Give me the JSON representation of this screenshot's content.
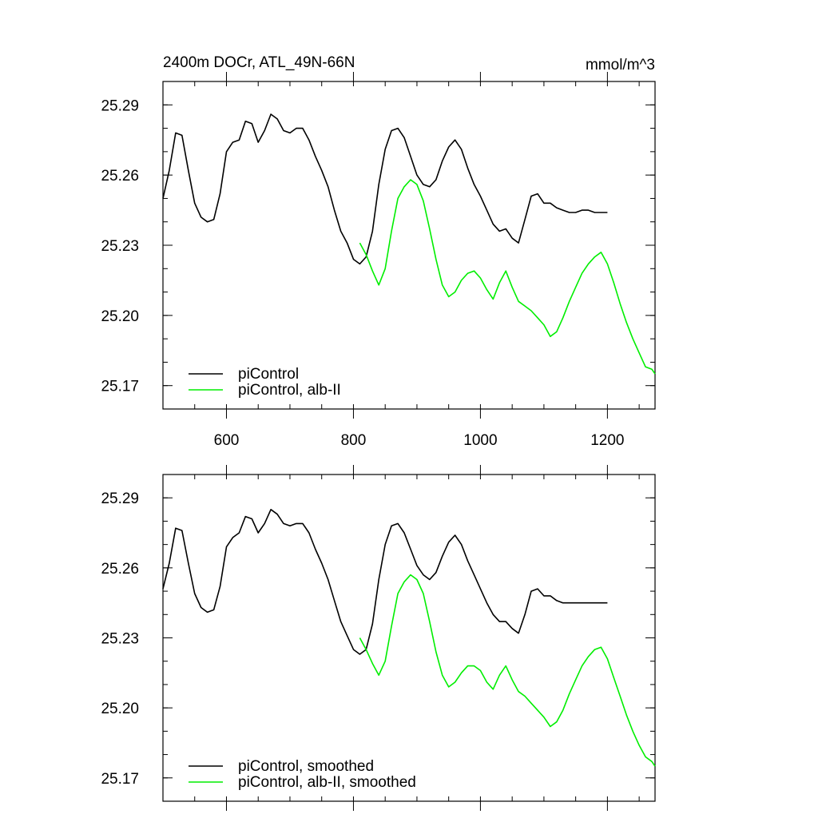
{
  "chart_data": [
    {
      "type": "line",
      "title": "2400m DOCr, ATL_49N-66N",
      "units": "mmol/m^3",
      "xlim": [
        500,
        1275
      ],
      "ylim": [
        25.16,
        25.3
      ],
      "xticks": [
        600,
        800,
        1000,
        1200
      ],
      "xtick_labels": [
        "600",
        "800",
        "1000",
        "1200"
      ],
      "yticks": [
        25.17,
        25.2,
        25.23,
        25.26,
        25.29
      ],
      "ytick_labels": [
        "25.17",
        "25.20",
        "25.23",
        "25.26",
        "25.29"
      ],
      "legend": "bottom-left",
      "grid": false,
      "series": [
        {
          "name": "piControl",
          "color": "#000000",
          "x": [
            500,
            510,
            520,
            530,
            540,
            550,
            560,
            570,
            580,
            590,
            600,
            610,
            620,
            630,
            640,
            650,
            660,
            670,
            680,
            690,
            700,
            710,
            720,
            730,
            740,
            750,
            760,
            770,
            780,
            790,
            800,
            810,
            820,
            830,
            840,
            850,
            860,
            870,
            880,
            890,
            900,
            910,
            920,
            930,
            940,
            950,
            960,
            970,
            980,
            990,
            1000,
            1010,
            1020,
            1030,
            1040,
            1050,
            1060,
            1070,
            1080,
            1090,
            1100,
            1110,
            1120,
            1130,
            1140,
            1150,
            1160,
            1170,
            1180,
            1190,
            1200
          ],
          "values": [
            25.25,
            25.262,
            25.278,
            25.277,
            25.262,
            25.248,
            25.242,
            25.24,
            25.241,
            25.252,
            25.27,
            25.274,
            25.275,
            25.283,
            25.282,
            25.274,
            25.279,
            25.286,
            25.284,
            25.279,
            25.278,
            25.28,
            25.28,
            25.275,
            25.268,
            25.262,
            25.255,
            25.245,
            25.236,
            25.231,
            25.224,
            25.222,
            25.225,
            25.236,
            25.256,
            25.271,
            25.279,
            25.28,
            25.276,
            25.268,
            25.26,
            25.256,
            25.255,
            25.258,
            25.266,
            25.272,
            25.275,
            25.271,
            25.263,
            25.256,
            25.251,
            25.245,
            25.239,
            25.236,
            25.237,
            25.233,
            25.231,
            25.241,
            25.251,
            25.252,
            25.248,
            25.248,
            25.246,
            25.245,
            25.244,
            25.244,
            25.245,
            25.245,
            25.244,
            25.244,
            25.244
          ]
        },
        {
          "name": "piControl, alb-II",
          "color": "#00ee00",
          "x": [
            810,
            820,
            830,
            840,
            850,
            860,
            870,
            880,
            890,
            900,
            910,
            920,
            930,
            940,
            950,
            960,
            970,
            980,
            990,
            1000,
            1010,
            1020,
            1030,
            1040,
            1050,
            1060,
            1070,
            1080,
            1090,
            1100,
            1110,
            1120,
            1130,
            1140,
            1150,
            1160,
            1170,
            1180,
            1190,
            1200,
            1210,
            1220,
            1230,
            1240,
            1250,
            1260,
            1270,
            1275
          ],
          "values": [
            25.231,
            25.226,
            25.219,
            25.213,
            25.22,
            25.236,
            25.25,
            25.255,
            25.258,
            25.256,
            25.249,
            25.237,
            25.224,
            25.213,
            25.208,
            25.21,
            25.215,
            25.218,
            25.219,
            25.216,
            25.211,
            25.207,
            25.214,
            25.219,
            25.212,
            25.206,
            25.204,
            25.202,
            25.199,
            25.196,
            25.191,
            25.193,
            25.199,
            25.206,
            25.212,
            25.218,
            25.222,
            25.225,
            25.227,
            25.222,
            25.214,
            25.205,
            25.197,
            25.19,
            25.184,
            25.178,
            25.177,
            25.175
          ]
        }
      ]
    },
    {
      "type": "line",
      "xlim": [
        500,
        1275
      ],
      "ylim": [
        25.16,
        25.3
      ],
      "xticks": [
        600,
        800,
        1000,
        1200
      ],
      "yticks": [
        25.17,
        25.2,
        25.23,
        25.26,
        25.29
      ],
      "ytick_labels": [
        "25.17",
        "25.20",
        "25.23",
        "25.26",
        "25.29"
      ],
      "legend": "bottom-left",
      "grid": false,
      "series": [
        {
          "name": "piControl, smoothed",
          "color": "#000000",
          "x": [
            500,
            510,
            520,
            530,
            540,
            550,
            560,
            570,
            580,
            590,
            600,
            610,
            620,
            630,
            640,
            650,
            660,
            670,
            680,
            690,
            700,
            710,
            720,
            730,
            740,
            750,
            760,
            770,
            780,
            790,
            800,
            810,
            820,
            830,
            840,
            850,
            860,
            870,
            880,
            890,
            900,
            910,
            920,
            930,
            940,
            950,
            960,
            970,
            980,
            990,
            1000,
            1010,
            1020,
            1030,
            1040,
            1050,
            1060,
            1070,
            1080,
            1090,
            1100,
            1110,
            1120,
            1130,
            1140,
            1150,
            1160,
            1170,
            1180,
            1190,
            1200
          ],
          "values": [
            25.251,
            25.262,
            25.277,
            25.276,
            25.262,
            25.249,
            25.243,
            25.241,
            25.242,
            25.252,
            25.269,
            25.273,
            25.275,
            25.282,
            25.281,
            25.275,
            25.279,
            25.285,
            25.283,
            25.279,
            25.278,
            25.279,
            25.279,
            25.275,
            25.268,
            25.262,
            25.255,
            25.246,
            25.237,
            25.231,
            25.225,
            25.223,
            25.225,
            25.236,
            25.255,
            25.27,
            25.278,
            25.279,
            25.275,
            25.268,
            25.261,
            25.257,
            25.255,
            25.258,
            25.265,
            25.271,
            25.274,
            25.27,
            25.263,
            25.257,
            25.251,
            25.245,
            25.24,
            25.237,
            25.237,
            25.234,
            25.232,
            25.24,
            25.25,
            25.251,
            25.248,
            25.248,
            25.246,
            25.245,
            25.245,
            25.245,
            25.245,
            25.245,
            25.245,
            25.245,
            25.245
          ]
        },
        {
          "name": "piControl, alb-II, smoothed",
          "color": "#00ee00",
          "x": [
            810,
            820,
            830,
            840,
            850,
            860,
            870,
            880,
            890,
            900,
            910,
            920,
            930,
            940,
            950,
            960,
            970,
            980,
            990,
            1000,
            1010,
            1020,
            1030,
            1040,
            1050,
            1060,
            1070,
            1080,
            1090,
            1100,
            1110,
            1120,
            1130,
            1140,
            1150,
            1160,
            1170,
            1180,
            1190,
            1200,
            1210,
            1220,
            1230,
            1240,
            1250,
            1260,
            1270,
            1275
          ],
          "values": [
            25.23,
            25.225,
            25.219,
            25.214,
            25.22,
            25.235,
            25.249,
            25.254,
            25.257,
            25.255,
            25.249,
            25.237,
            25.224,
            25.214,
            25.209,
            25.211,
            25.215,
            25.218,
            25.218,
            25.216,
            25.211,
            25.208,
            25.214,
            25.218,
            25.212,
            25.207,
            25.205,
            25.202,
            25.199,
            25.196,
            25.192,
            25.194,
            25.199,
            25.206,
            25.212,
            25.218,
            25.222,
            25.225,
            25.226,
            25.221,
            25.213,
            25.205,
            25.197,
            25.19,
            25.184,
            25.179,
            25.177,
            25.175
          ]
        }
      ]
    }
  ]
}
